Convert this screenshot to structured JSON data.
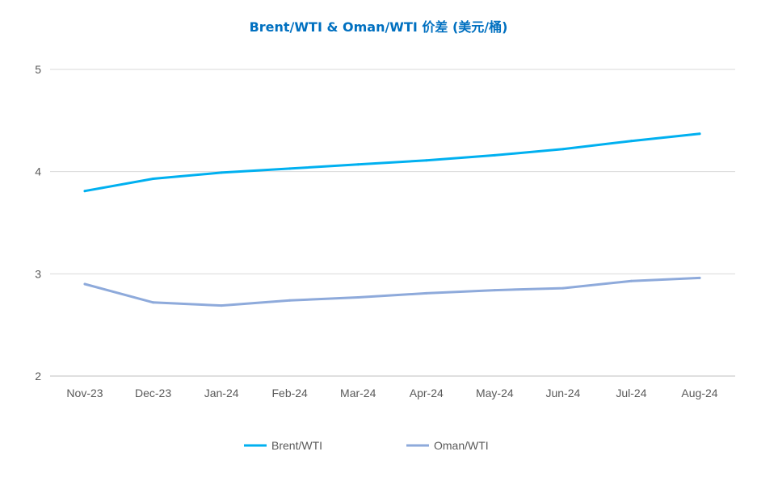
{
  "chart_data": {
    "type": "line",
    "title": "Brent/WTI & Oman/WTI 价差 (美元/桶)",
    "xlabel": "",
    "ylabel": "",
    "categories": [
      "Nov-23",
      "Dec-23",
      "Jan-24",
      "Feb-24",
      "Mar-24",
      "Apr-24",
      "May-24",
      "Jun-24",
      "Jul-24",
      "Aug-24"
    ],
    "ylim": [
      2,
      5
    ],
    "yticks": [
      2,
      3,
      4,
      5
    ],
    "grid": true,
    "legend_position": "bottom",
    "series": [
      {
        "name": "Brent/WTI",
        "color": "#00b0f0",
        "values": [
          3.81,
          3.93,
          3.99,
          4.03,
          4.07,
          4.11,
          4.16,
          4.22,
          4.3,
          4.37
        ]
      },
      {
        "name": "Oman/WTI",
        "color": "#8eaadb",
        "values": [
          2.9,
          2.72,
          2.69,
          2.74,
          2.77,
          2.81,
          2.84,
          2.86,
          2.93,
          2.96
        ]
      }
    ]
  }
}
